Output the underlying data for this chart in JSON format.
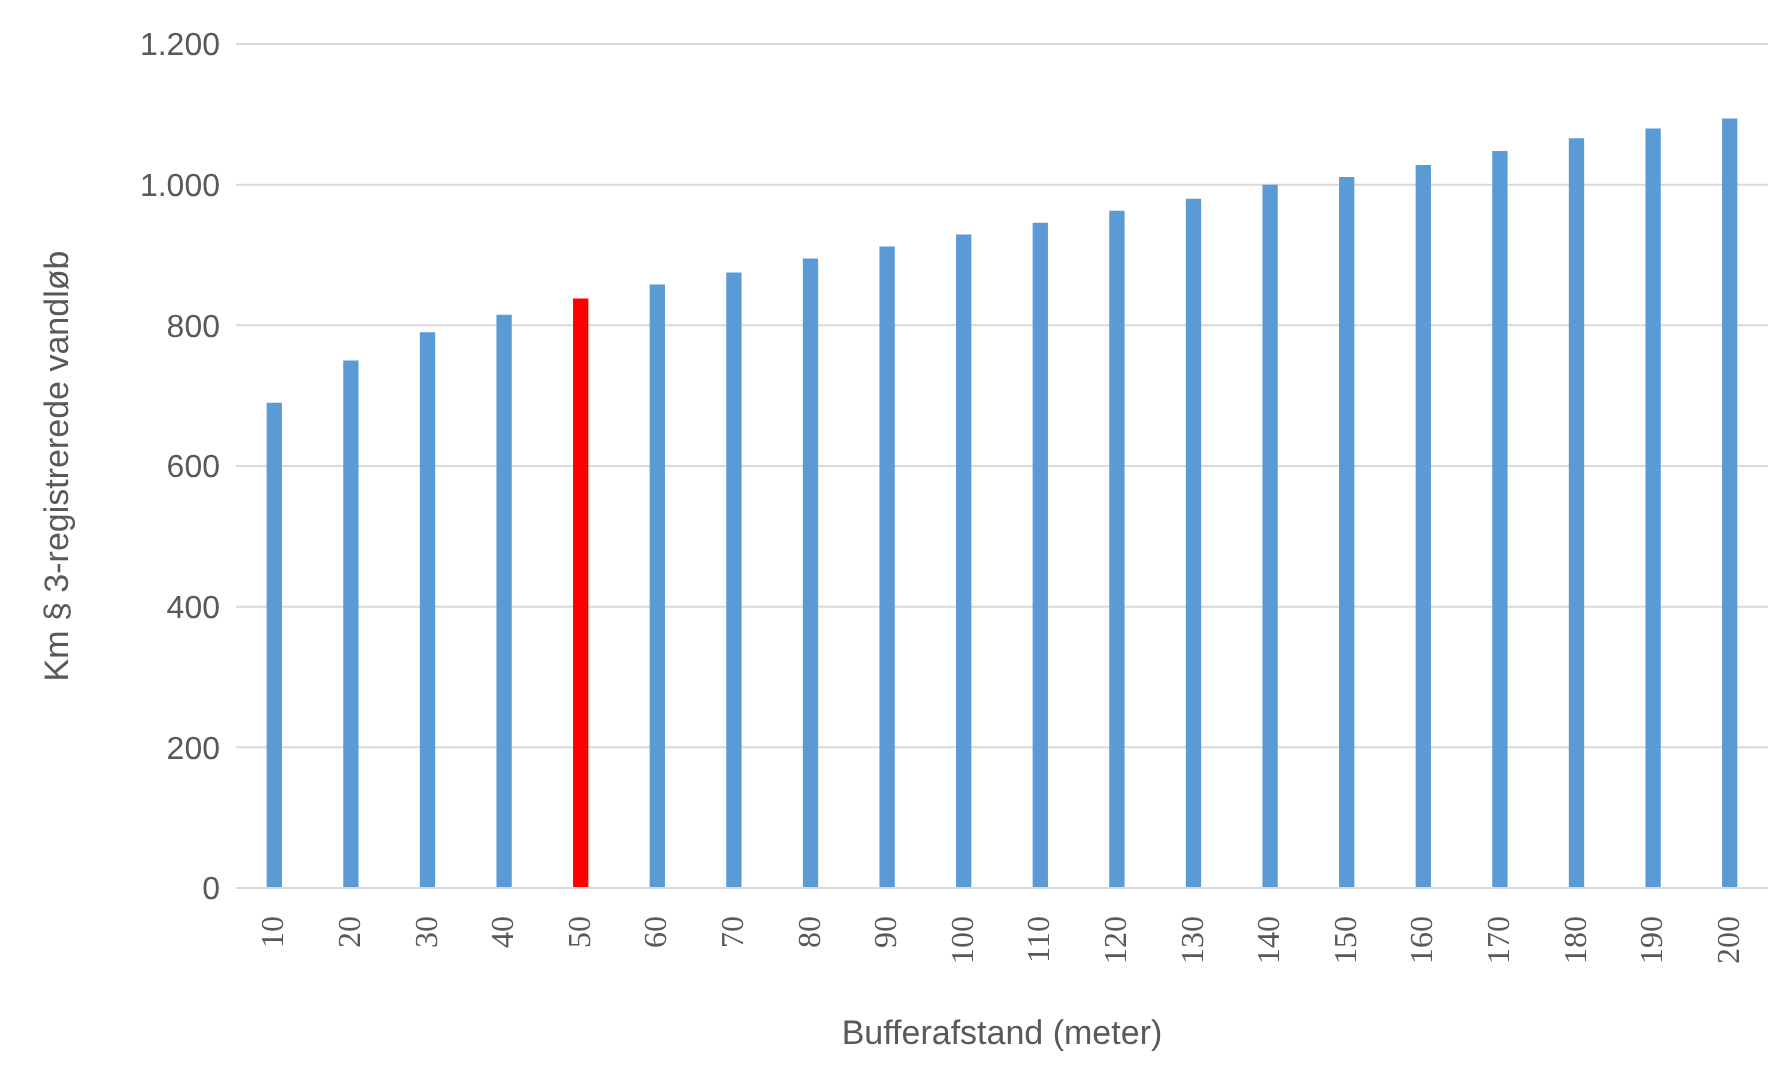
{
  "chart_data": {
    "type": "bar",
    "xlabel": "Bufferafstand (meter)",
    "ylabel": "Km § 3-registrerede vandløb",
    "categories": [
      "10",
      "20",
      "30",
      "40",
      "50",
      "60",
      "70",
      "80",
      "90",
      "100",
      "110",
      "120",
      "130",
      "140",
      "150",
      "160",
      "170",
      "180",
      "190",
      "200"
    ],
    "values": [
      690,
      750,
      790,
      815,
      838,
      858,
      875,
      895,
      912,
      929,
      946,
      963,
      980,
      1000,
      1011,
      1028,
      1048,
      1066,
      1080,
      1094
    ],
    "colors": [
      "#5b9bd5",
      "#5b9bd5",
      "#5b9bd5",
      "#5b9bd5",
      "#ff0000",
      "#5b9bd5",
      "#5b9bd5",
      "#5b9bd5",
      "#5b9bd5",
      "#5b9bd5",
      "#5b9bd5",
      "#5b9bd5",
      "#5b9bd5",
      "#5b9bd5",
      "#5b9bd5",
      "#5b9bd5",
      "#5b9bd5",
      "#5b9bd5",
      "#5b9bd5",
      "#5b9bd5"
    ],
    "ylim": [
      0,
      1200
    ],
    "yticks": [
      0,
      200,
      400,
      600,
      800,
      {
        "value": 1000,
        "label": "1.000"
      },
      {
        "value": 1200,
        "label": "1.200"
      }
    ],
    "grid": "y",
    "legend": false
  }
}
